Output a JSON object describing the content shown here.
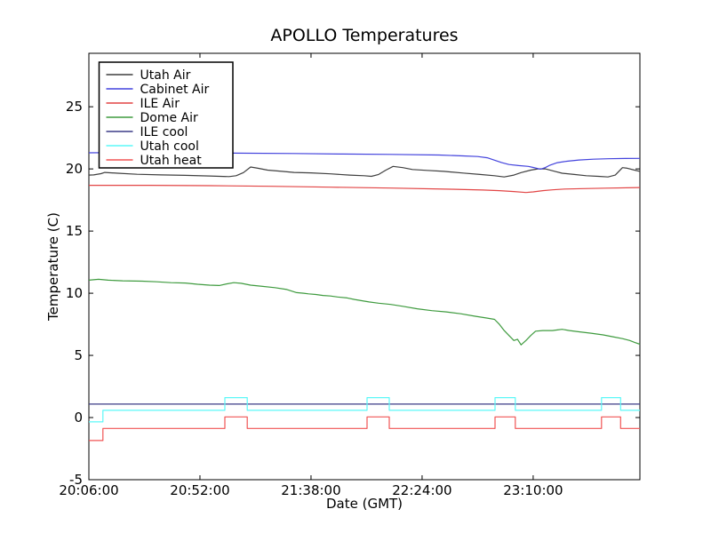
{
  "chart_data": {
    "type": "line",
    "title": "APOLLO Temperatures",
    "xlabel": "Date (GMT)",
    "ylabel": "Temperature (C)",
    "grid": false,
    "legend_position": "upper left",
    "x_unit_note": "minutes after 20:06:00 GMT",
    "x_range": [
      0,
      228.2
    ],
    "y_range": [
      -5,
      29.3
    ],
    "x_ticks": [
      {
        "t": 0,
        "label": "20:06:00"
      },
      {
        "t": 46,
        "label": "20:52:00"
      },
      {
        "t": 92,
        "label": "21:38:00"
      },
      {
        "t": 138,
        "label": "22:24:00"
      },
      {
        "t": 184,
        "label": "23:10:00"
      }
    ],
    "y_ticks": [
      {
        "v": -5,
        "label": "-5"
      },
      {
        "v": 0,
        "label": "0"
      },
      {
        "v": 5,
        "label": "5"
      },
      {
        "v": 10,
        "label": "10"
      },
      {
        "v": 15,
        "label": "15"
      },
      {
        "v": 20,
        "label": "20"
      },
      {
        "v": 25,
        "label": "25"
      }
    ],
    "series": [
      {
        "name": "Utah Air",
        "color": "#3f3f3f",
        "points": [
          [
            0,
            19.5
          ],
          [
            2,
            19.52
          ],
          [
            5,
            19.62
          ],
          [
            6.6,
            19.72
          ],
          [
            12,
            19.65
          ],
          [
            20,
            19.57
          ],
          [
            30,
            19.52
          ],
          [
            40,
            19.48
          ],
          [
            50,
            19.43
          ],
          [
            58,
            19.38
          ],
          [
            61,
            19.45
          ],
          [
            64,
            19.7
          ],
          [
            67,
            20.15
          ],
          [
            70,
            20.05
          ],
          [
            74,
            19.9
          ],
          [
            80,
            19.8
          ],
          [
            85,
            19.72
          ],
          [
            92,
            19.68
          ],
          [
            100,
            19.6
          ],
          [
            108,
            19.5
          ],
          [
            114,
            19.45
          ],
          [
            117,
            19.4
          ],
          [
            120,
            19.55
          ],
          [
            123,
            19.9
          ],
          [
            126,
            20.2
          ],
          [
            130,
            20.1
          ],
          [
            134,
            19.95
          ],
          [
            140,
            19.88
          ],
          [
            147,
            19.8
          ],
          [
            155,
            19.67
          ],
          [
            162,
            19.55
          ],
          [
            168,
            19.45
          ],
          [
            172,
            19.35
          ],
          [
            176,
            19.5
          ],
          [
            179,
            19.7
          ],
          [
            183,
            19.9
          ],
          [
            186,
            20.0
          ],
          [
            189,
            20.0
          ],
          [
            193,
            19.8
          ],
          [
            196,
            19.65
          ],
          [
            201,
            19.55
          ],
          [
            206,
            19.45
          ],
          [
            211,
            19.4
          ],
          [
            215,
            19.35
          ],
          [
            218,
            19.5
          ],
          [
            221,
            20.1
          ],
          [
            223,
            20.05
          ],
          [
            226,
            19.9
          ],
          [
            228.2,
            19.8
          ]
        ]
      },
      {
        "name": "Cabinet Air",
        "color": "#4343dd",
        "points": [
          [
            0,
            21.3
          ],
          [
            15,
            21.32
          ],
          [
            35,
            21.3
          ],
          [
            60,
            21.27
          ],
          [
            85,
            21.24
          ],
          [
            105,
            21.2
          ],
          [
            125,
            21.17
          ],
          [
            145,
            21.12
          ],
          [
            155,
            21.05
          ],
          [
            161,
            21.0
          ],
          [
            165,
            20.9
          ],
          [
            168,
            20.7
          ],
          [
            171,
            20.5
          ],
          [
            174,
            20.35
          ],
          [
            178,
            20.27
          ],
          [
            182,
            20.2
          ],
          [
            184,
            20.12
          ],
          [
            187,
            19.98
          ],
          [
            189,
            20.1
          ],
          [
            191,
            20.3
          ],
          [
            194,
            20.5
          ],
          [
            198,
            20.62
          ],
          [
            203,
            20.72
          ],
          [
            209,
            20.78
          ],
          [
            215,
            20.82
          ],
          [
            222,
            20.84
          ],
          [
            228.2,
            20.85
          ]
        ]
      },
      {
        "name": "ILE Air",
        "color": "#e24444",
        "points": [
          [
            0,
            18.68
          ],
          [
            25,
            18.68
          ],
          [
            50,
            18.65
          ],
          [
            75,
            18.6
          ],
          [
            100,
            18.53
          ],
          [
            125,
            18.46
          ],
          [
            150,
            18.37
          ],
          [
            163,
            18.3
          ],
          [
            170,
            18.25
          ],
          [
            176,
            18.18
          ],
          [
            181,
            18.1
          ],
          [
            184,
            18.15
          ],
          [
            188,
            18.25
          ],
          [
            192,
            18.32
          ],
          [
            197,
            18.38
          ],
          [
            205,
            18.42
          ],
          [
            214,
            18.45
          ],
          [
            228.2,
            18.5
          ]
        ]
      },
      {
        "name": "Dome Air",
        "color": "#3f9b3f",
        "points": [
          [
            0,
            11.05
          ],
          [
            4,
            11.12
          ],
          [
            8,
            11.05
          ],
          [
            14,
            11.0
          ],
          [
            22,
            10.97
          ],
          [
            28,
            10.92
          ],
          [
            34,
            10.85
          ],
          [
            40,
            10.82
          ],
          [
            45,
            10.72
          ],
          [
            50,
            10.65
          ],
          [
            54,
            10.62
          ],
          [
            57,
            10.75
          ],
          [
            60,
            10.85
          ],
          [
            63,
            10.8
          ],
          [
            67,
            10.65
          ],
          [
            72,
            10.55
          ],
          [
            77,
            10.45
          ],
          [
            82,
            10.3
          ],
          [
            86,
            10.05
          ],
          [
            89,
            10.0
          ],
          [
            91,
            9.95
          ],
          [
            94,
            9.9
          ],
          [
            97,
            9.82
          ],
          [
            100,
            9.78
          ],
          [
            103,
            9.7
          ],
          [
            107,
            9.62
          ],
          [
            110,
            9.5
          ],
          [
            113,
            9.4
          ],
          [
            116,
            9.3
          ],
          [
            120,
            9.2
          ],
          [
            125,
            9.1
          ],
          [
            130,
            8.95
          ],
          [
            136,
            8.75
          ],
          [
            142,
            8.6
          ],
          [
            148,
            8.5
          ],
          [
            154,
            8.35
          ],
          [
            160,
            8.15
          ],
          [
            165,
            8.0
          ],
          [
            168,
            7.9
          ],
          [
            170,
            7.5
          ],
          [
            172,
            7.0
          ],
          [
            174,
            6.6
          ],
          [
            176,
            6.2
          ],
          [
            177.5,
            6.3
          ],
          [
            179,
            5.85
          ],
          [
            181,
            6.2
          ],
          [
            183,
            6.6
          ],
          [
            185,
            6.95
          ],
          [
            188,
            7.0
          ],
          [
            192,
            7.0
          ],
          [
            194,
            7.05
          ],
          [
            196,
            7.1
          ],
          [
            199,
            7.0
          ],
          [
            203,
            6.9
          ],
          [
            208,
            6.78
          ],
          [
            213,
            6.65
          ],
          [
            217,
            6.5
          ],
          [
            221,
            6.35
          ],
          [
            224,
            6.2
          ],
          [
            226,
            6.05
          ],
          [
            228.2,
            5.9
          ]
        ]
      },
      {
        "name": "ILE cool",
        "color": "#3c3c87",
        "points": [
          [
            0,
            1.08
          ],
          [
            228.2,
            1.08
          ]
        ]
      },
      {
        "name": "Utah cool",
        "color": "#5cf8f8",
        "points": [
          [
            0,
            -0.35
          ],
          [
            5.8,
            -0.35
          ],
          [
            5.8,
            0.58
          ],
          [
            56.3,
            0.58
          ],
          [
            56.3,
            1.6
          ],
          [
            65.6,
            1.6
          ],
          [
            65.6,
            0.58
          ],
          [
            115.2,
            0.58
          ],
          [
            115.2,
            1.6
          ],
          [
            124.4,
            1.6
          ],
          [
            124.4,
            0.58
          ],
          [
            168.2,
            0.58
          ],
          [
            168.2,
            1.6
          ],
          [
            176.6,
            1.6
          ],
          [
            176.6,
            0.58
          ],
          [
            212.3,
            0.58
          ],
          [
            212.3,
            1.6
          ],
          [
            220.2,
            1.6
          ],
          [
            220.2,
            0.58
          ],
          [
            228.2,
            0.58
          ]
        ]
      },
      {
        "name": "Utah heat",
        "color": "#f05454",
        "points": [
          [
            0,
            -1.85
          ],
          [
            5.8,
            -1.85
          ],
          [
            5.8,
            -0.88
          ],
          [
            56.3,
            -0.88
          ],
          [
            56.3,
            0.05
          ],
          [
            65.6,
            0.05
          ],
          [
            65.6,
            -0.88
          ],
          [
            115.2,
            -0.88
          ],
          [
            115.2,
            0.05
          ],
          [
            124.4,
            0.05
          ],
          [
            124.4,
            -0.88
          ],
          [
            168.2,
            -0.88
          ],
          [
            168.2,
            0.05
          ],
          [
            176.6,
            0.05
          ],
          [
            176.6,
            -0.88
          ],
          [
            212.3,
            -0.88
          ],
          [
            212.3,
            0.05
          ],
          [
            220.2,
            0.05
          ],
          [
            220.2,
            -0.88
          ],
          [
            228.2,
            -0.88
          ]
        ]
      }
    ]
  },
  "style": {
    "axis_color": "#000000",
    "background_color": "#ffffff",
    "legend_border_color": "#000000",
    "legend_background": "#ffffff"
  }
}
